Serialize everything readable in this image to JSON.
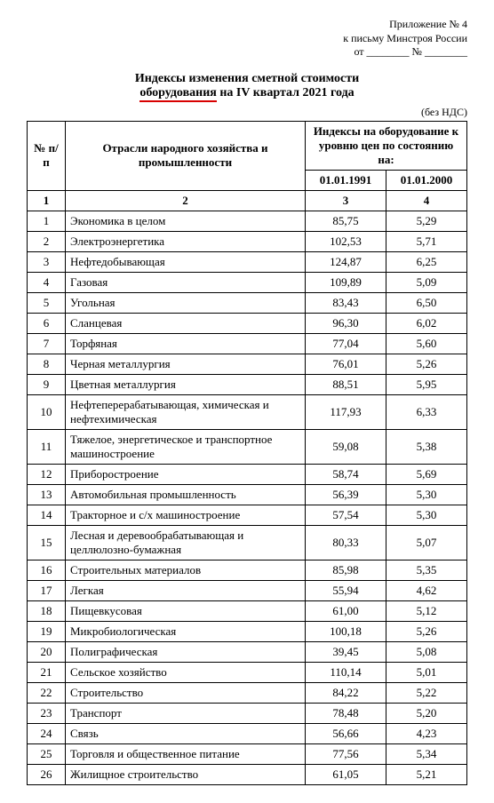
{
  "appendix": {
    "line1": "Приложение № 4",
    "line2": "к письму Минстроя России",
    "line3": "от ________ № ________"
  },
  "title": {
    "line1": "Индексы изменения сметной стоимости",
    "underlined_word": "оборудования",
    "line2_rest": " на IV квартал 2021 года"
  },
  "no_vat": "(без НДС)",
  "headers": {
    "num": "№ п/п",
    "name": "Отрасли народного хозяйства и промышленности",
    "group": "Индексы на оборудование к уровню цен по состоянию на:",
    "c3": "01.01.1991",
    "c4": "01.01.2000",
    "r1": "1",
    "r2": "2",
    "r3": "3",
    "r4": "4"
  },
  "rows": [
    {
      "n": "1",
      "name": "Экономика в целом",
      "a": "85,75",
      "b": "5,29"
    },
    {
      "n": "2",
      "name": "Электроэнергетика",
      "a": "102,53",
      "b": "5,71"
    },
    {
      "n": "3",
      "name": "Нефтедобывающая",
      "a": "124,87",
      "b": "6,25"
    },
    {
      "n": "4",
      "name": "Газовая",
      "a": "109,89",
      "b": "5,09"
    },
    {
      "n": "5",
      "name": "Угольная",
      "a": "83,43",
      "b": "6,50"
    },
    {
      "n": "6",
      "name": "Сланцевая",
      "a": "96,30",
      "b": "6,02"
    },
    {
      "n": "7",
      "name": "Торфяная",
      "a": "77,04",
      "b": "5,60"
    },
    {
      "n": "8",
      "name": "Черная металлургия",
      "a": "76,01",
      "b": "5,26"
    },
    {
      "n": "9",
      "name": "Цветная металлургия",
      "a": "88,51",
      "b": "5,95"
    },
    {
      "n": "10",
      "name": "Нефтеперерабатывающая, химическая и нефтехимическая",
      "a": "117,93",
      "b": "6,33"
    },
    {
      "n": "11",
      "name": "Тяжелое, энергетическое и транспортное машиностроение",
      "a": "59,08",
      "b": "5,38"
    },
    {
      "n": "12",
      "name": "Приборостроение",
      "a": "58,74",
      "b": "5,69"
    },
    {
      "n": "13",
      "name": "Автомобильная промышленность",
      "a": "56,39",
      "b": "5,30"
    },
    {
      "n": "14",
      "name": "Тракторное и с/х машиностроение",
      "a": "57,54",
      "b": "5,30"
    },
    {
      "n": "15",
      "name": "Лесная и деревообрабатывающая и целлюлозно-бумажная",
      "a": "80,33",
      "b": "5,07"
    },
    {
      "n": "16",
      "name": "Строительных материалов",
      "a": "85,98",
      "b": "5,35"
    },
    {
      "n": "17",
      "name": "Легкая",
      "a": "55,94",
      "b": "4,62"
    },
    {
      "n": "18",
      "name": "Пищевкусовая",
      "a": "61,00",
      "b": "5,12"
    },
    {
      "n": "19",
      "name": "Микробиологическая",
      "a": "100,18",
      "b": "5,26"
    },
    {
      "n": "20",
      "name": "Полиграфическая",
      "a": "39,45",
      "b": "5,08"
    },
    {
      "n": "21",
      "name": "Сельское хозяйство",
      "a": "110,14",
      "b": "5,01"
    },
    {
      "n": "22",
      "name": "Строительство",
      "a": "84,22",
      "b": "5,22"
    },
    {
      "n": "23",
      "name": "Транспорт",
      "a": "78,48",
      "b": "5,20"
    },
    {
      "n": "24",
      "name": "Связь",
      "a": "56,66",
      "b": "4,23"
    },
    {
      "n": "25",
      "name": "Торговля и общественное питание",
      "a": "77,56",
      "b": "5,34"
    },
    {
      "n": "26",
      "name": "Жилищное строительство",
      "a": "61,05",
      "b": "5,21"
    }
  ]
}
